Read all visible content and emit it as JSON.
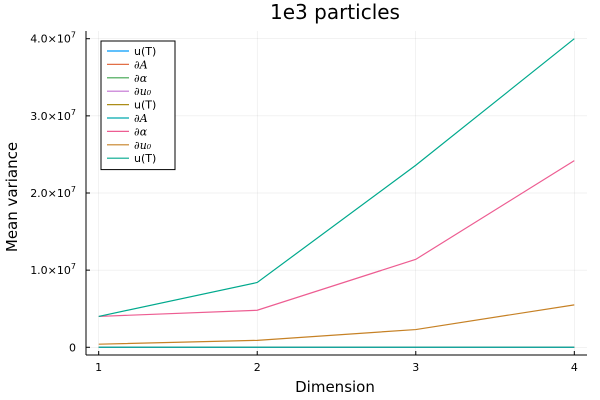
{
  "chart_data": {
    "type": "line",
    "title": "1e3 particles",
    "xlabel": "Dimension",
    "ylabel": "Mean variance",
    "x": [
      1,
      2,
      3,
      4
    ],
    "xlim": [
      0.92,
      4.08
    ],
    "ylim": [
      -1000000,
      41000000
    ],
    "x_ticks": [
      "1",
      "2",
      "3",
      "4"
    ],
    "y_ticks": [
      {
        "value": 0,
        "mantissa": "0",
        "exp": ""
      },
      {
        "value": 10000000,
        "mantissa": "1.0×10",
        "exp": "7"
      },
      {
        "value": 20000000,
        "mantissa": "2.0×10",
        "exp": "7"
      },
      {
        "value": 30000000,
        "mantissa": "3.0×10",
        "exp": "7"
      },
      {
        "value": 40000000,
        "mantissa": "4.0×10",
        "exp": "7"
      }
    ],
    "grid": true,
    "legend_position": "top-left",
    "series": [
      {
        "name": "u(T)",
        "math": false,
        "color": "#009af9",
        "values": [
          0,
          0,
          0,
          0
        ]
      },
      {
        "name": "∂A",
        "math": true,
        "color": "#e26f46",
        "values": [
          0,
          0,
          0,
          0
        ]
      },
      {
        "name": "∂α",
        "math": true,
        "color": "#3da44d",
        "values": [
          0,
          0,
          0,
          0
        ]
      },
      {
        "name": "∂u₀",
        "math": true,
        "color": "#c271d2",
        "values": [
          0,
          0,
          0,
          0
        ]
      },
      {
        "name": "u(T)",
        "math": false,
        "color": "#ac8d18",
        "values": [
          0,
          0,
          0,
          0
        ]
      },
      {
        "name": "∂A",
        "math": true,
        "color": "#00a9ad",
        "values": [
          0,
          0,
          0,
          0
        ]
      },
      {
        "name": "∂α",
        "math": true,
        "color": "#ed5d92",
        "values": [
          4000000,
          4800000,
          11400000,
          24200000
        ]
      },
      {
        "name": "∂u₀",
        "math": true,
        "color": "#c68125",
        "values": [
          400000,
          900000,
          2300000,
          5500000
        ]
      },
      {
        "name": "u(T)",
        "math": false,
        "color": "#00a98d",
        "values": [
          4000000,
          8400000,
          23600000,
          40000000
        ]
      }
    ]
  }
}
